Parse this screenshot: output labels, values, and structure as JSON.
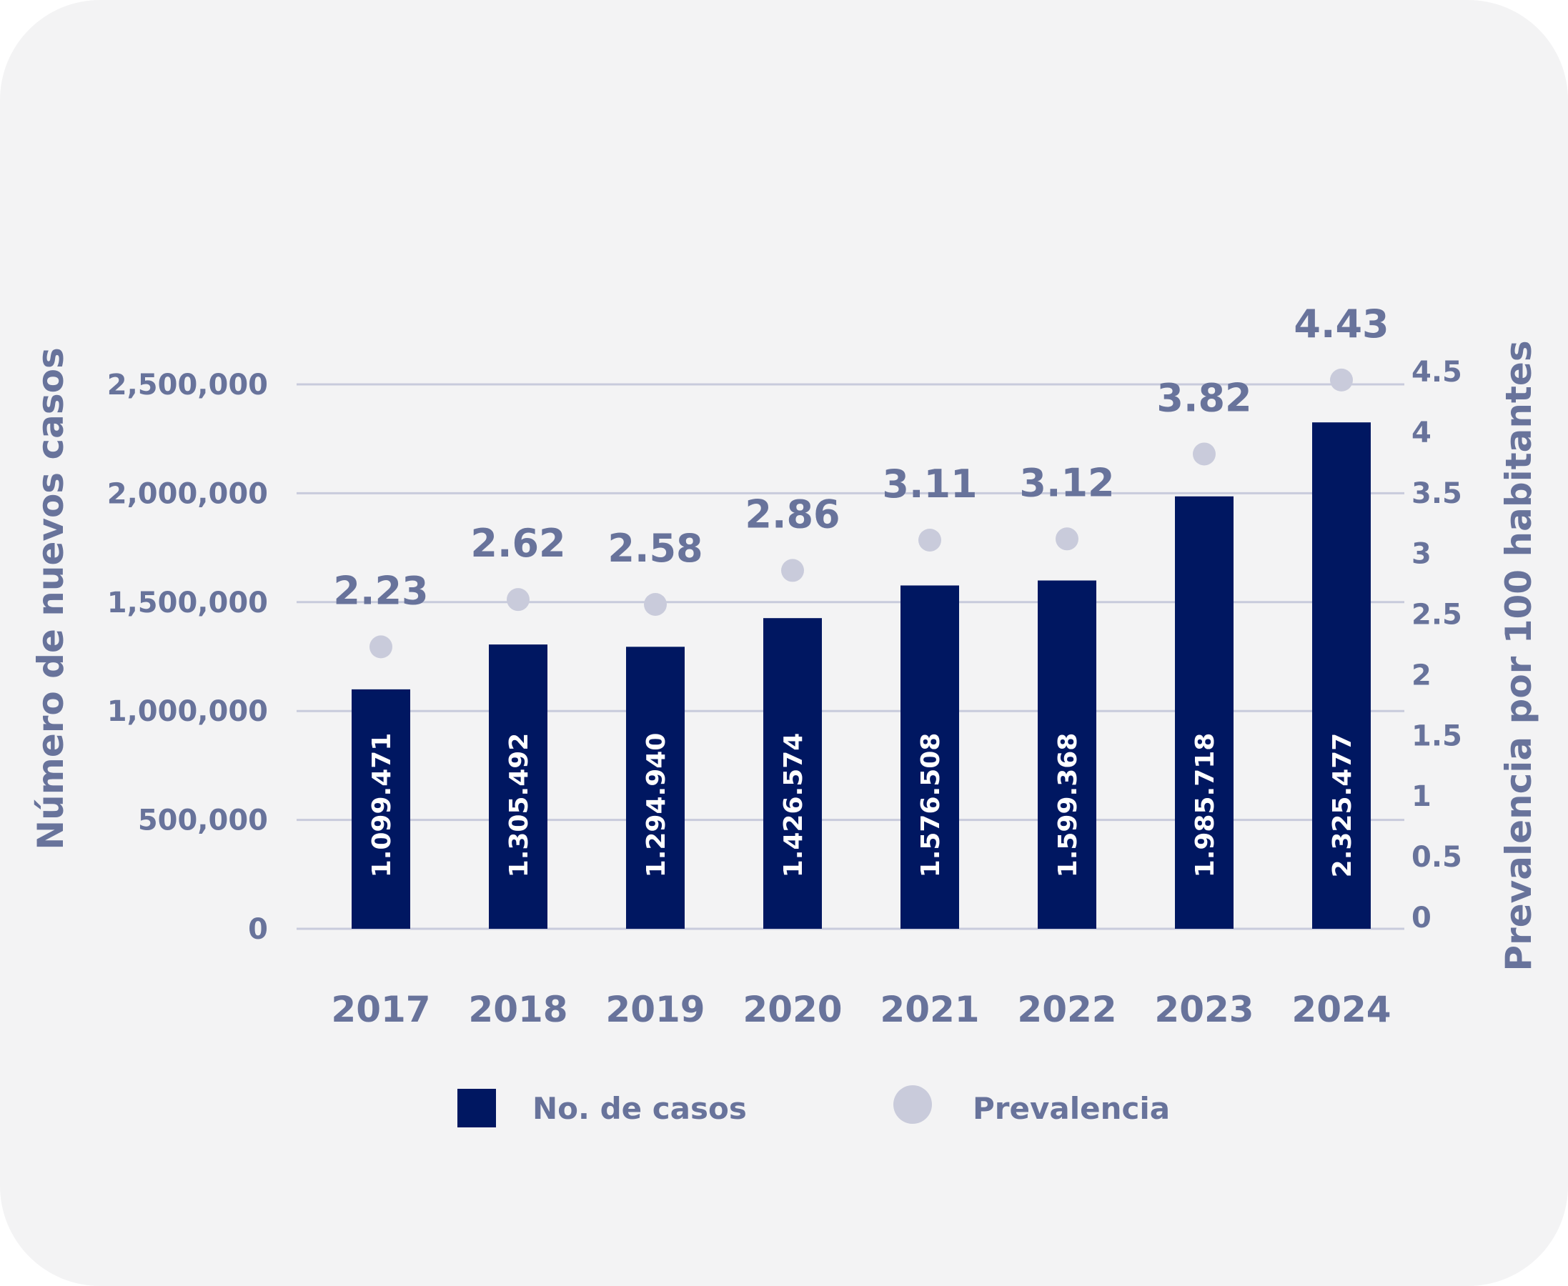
{
  "chart_data": {
    "type": "bar",
    "categories": [
      "2017",
      "2018",
      "2019",
      "2020",
      "2021",
      "2022",
      "2023",
      "2024"
    ],
    "series": [
      {
        "name": "No. de casos",
        "type": "bar",
        "axis": "left",
        "values": [
          1099471,
          1305492,
          1294940,
          1426574,
          1576508,
          1599368,
          1985718,
          2325477
        ],
        "labels": [
          "1.099.471",
          "1.305.492",
          "1.294.940",
          "1.426.574",
          "1.576.508",
          "1.599.368",
          "1.985.718",
          "2.325.477"
        ],
        "color": "#001761"
      },
      {
        "name": "Prevalencia",
        "type": "scatter",
        "axis": "right",
        "values": [
          2.23,
          2.62,
          2.58,
          2.86,
          3.11,
          3.12,
          3.82,
          4.43
        ],
        "labels": [
          "2.23",
          "2.62",
          "2.58",
          "2.86",
          "3.11",
          "3.12",
          "3.82",
          "4.43"
        ],
        "color": "#c9cbdb"
      }
    ],
    "ylabel": "Número de nuevos casos",
    "y2label": "Prevalencia por 100 habitantes",
    "ylim": [
      0,
      2500000
    ],
    "yticks": [
      "0",
      "500,000",
      "1,000,000",
      "1,500,000",
      "2,000,000",
      "2,500,000"
    ],
    "y2lim": [
      0,
      4.5
    ],
    "y2ticks": [
      "0",
      "0.5",
      "1",
      "1.5",
      "2",
      "2.5",
      "3",
      "3.5",
      "4",
      "4.5"
    ],
    "grid": true,
    "legend_position": "bottom",
    "text_color": "#68739b",
    "grid_color": "#c8cbdc",
    "background_color": "#f3f3f4"
  }
}
